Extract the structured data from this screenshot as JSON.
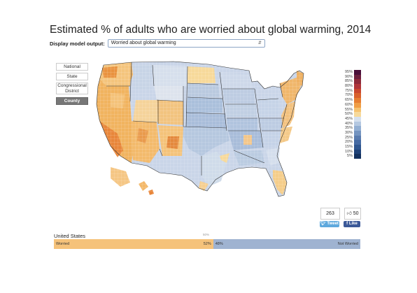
{
  "title": "Estimated % of adults who are worried about global warming, 2014",
  "selector": {
    "label": "Display model output:",
    "value": "Worried about global warming"
  },
  "geo_buttons": [
    "National",
    "State",
    "Congressional District",
    "County"
  ],
  "active_geo": "County",
  "legend": {
    "labels": [
      "95%",
      "90%",
      "85%",
      "80%",
      "75%",
      "70%",
      "65%",
      "60%",
      "55%",
      "50%",
      "45%",
      "40%",
      "35%",
      "30%",
      "25%",
      "20%",
      "15%",
      "10%",
      "5%"
    ],
    "colors": [
      "#4a0f3a",
      "#6d1f3e",
      "#8e2a3a",
      "#b0353a",
      "#c9472e",
      "#d9602c",
      "#e67e32",
      "#f09d45",
      "#f6c26f",
      "#f7d99a",
      "#d5e0ee",
      "#b4c8e1",
      "#93afd3",
      "#7494c0",
      "#5a7caf",
      "#456aa3",
      "#2f568f",
      "#1e4278",
      "#13315f"
    ]
  },
  "share": {
    "count": "263",
    "tweet_label": "Tweet",
    "like_count": "50",
    "like_label": "Like"
  },
  "national_bar": {
    "region": "United States",
    "midpoint_label": "50%",
    "worried_label": "Worried",
    "worried_pct": 52,
    "worried_text": "52%",
    "not_worried_label": "Not Worried",
    "not_worried_pct": 48,
    "not_worried_text": "48%"
  }
}
